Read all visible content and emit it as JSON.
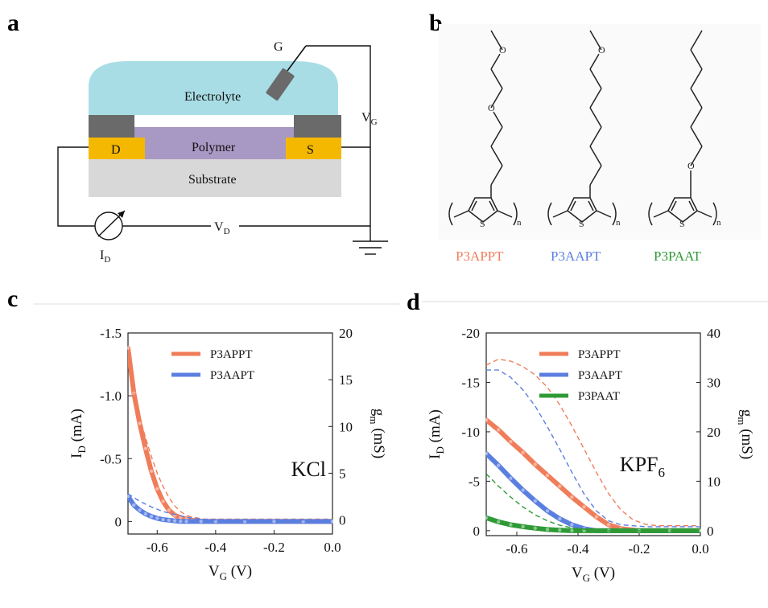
{
  "panels": {
    "a": {
      "letter": "a",
      "labels": {
        "gate": "G",
        "electrolyte": "Electrolyte",
        "polymer": "Polymer",
        "substrate": "Substrate",
        "drain": "D",
        "source": "S",
        "vg_main": "V",
        "vg_sub": "G",
        "vd_main": "V",
        "vd_sub": "D",
        "id_main": "I",
        "id_sub": "D"
      },
      "colors": {
        "electrolyte": "#a8dde5",
        "polymer": "#a898c4",
        "substrate": "#d8d8d8",
        "contact": "#f5b800",
        "passivation": "#6a6a6a"
      },
      "icons": [
        "ammeter-icon",
        "ground-icon",
        "gate-electrode-icon"
      ]
    },
    "b": {
      "letter": "b",
      "polymers": [
        {
          "name": "P3APPT",
          "color": "#f07d5a"
        },
        {
          "name": "P3AAPT",
          "color": "#5b7fe0"
        },
        {
          "name": "P3PAAT",
          "color": "#2e9a35"
        }
      ],
      "atoms": {
        "oxygen": "O",
        "sulfur": "S",
        "repeat": "n"
      }
    },
    "c": {
      "letter": "c",
      "annotation": "KCl",
      "chart_data": {
        "type": "line",
        "xlabel_main": "V",
        "xlabel_sub": "G",
        "xlabel_unit": " (V)",
        "ylabel_left_main": "I",
        "ylabel_left_sub": "D",
        "ylabel_left_unit": " (mA)",
        "ylabel_right_main": "g",
        "ylabel_right_sub": "m",
        "ylabel_right_unit": " (mS)",
        "xlim": [
          -0.7,
          0.0
        ],
        "ylim_left": [
          0.1,
          -1.5
        ],
        "ylim_right": [
          -1.5,
          20
        ],
        "x_ticks": [
          "-0.6",
          "-0.4",
          "-0.2",
          "0.0"
        ],
        "y_left_ticks": [
          "-1.5",
          "-1.0",
          "-0.5",
          "0"
        ],
        "y_right_ticks": [
          "20",
          "15",
          "10",
          "5",
          "0"
        ],
        "legend_position": "top-right",
        "series": [
          {
            "name": "P3APPT",
            "color": "#f07d5a",
            "axis": "left",
            "style": "markers",
            "x": [
              -0.7,
              -0.68,
              -0.66,
              -0.64,
              -0.62,
              -0.6,
              -0.58,
              -0.56,
              -0.54,
              -0.52,
              -0.5,
              -0.48,
              -0.46,
              -0.44,
              -0.4,
              -0.3,
              -0.2,
              -0.1,
              0.0
            ],
            "y": [
              -1.38,
              -1.02,
              -0.78,
              -0.58,
              -0.4,
              -0.26,
              -0.16,
              -0.09,
              -0.05,
              -0.03,
              -0.02,
              -0.01,
              -0.005,
              0.0,
              0.0,
              0.0,
              0.0,
              0.0,
              0.0
            ]
          },
          {
            "name": "P3APPT",
            "color": "#f07d5a",
            "axis": "right",
            "style": "dashed",
            "x": [
              -0.7,
              -0.68,
              -0.66,
              -0.64,
              -0.62,
              -0.6,
              -0.58,
              -0.56,
              -0.54,
              -0.52,
              -0.5,
              -0.48,
              -0.46,
              -0.44,
              -0.4,
              -0.3,
              -0.2,
              -0.1,
              0.0
            ],
            "y": [
              17.0,
              13.5,
              11.0,
              8.8,
              6.8,
              5.0,
              3.6,
              2.4,
              1.5,
              0.9,
              0.5,
              0.3,
              0.2,
              0.1,
              0.1,
              0.1,
              0.1,
              0.1,
              0.1
            ]
          },
          {
            "name": "P3AAPT",
            "color": "#5b7fe0",
            "axis": "left",
            "style": "markers",
            "x": [
              -0.7,
              -0.68,
              -0.66,
              -0.64,
              -0.62,
              -0.6,
              -0.58,
              -0.56,
              -0.54,
              -0.52,
              -0.5,
              -0.45,
              -0.4,
              -0.3,
              -0.2,
              -0.1,
              0.0
            ],
            "y": [
              -0.2,
              -0.13,
              -0.09,
              -0.06,
              -0.04,
              -0.025,
              -0.015,
              -0.01,
              -0.005,
              0.0,
              0.0,
              0.0,
              0.0,
              0.0,
              0.0,
              0.0,
              0.0
            ]
          },
          {
            "name": "P3AAPT",
            "color": "#5b7fe0",
            "axis": "right",
            "style": "dashed",
            "x": [
              -0.7,
              -0.66,
              -0.62,
              -0.58,
              -0.54,
              -0.5,
              -0.45,
              -0.4,
              -0.3,
              -0.2,
              -0.1,
              0.0
            ],
            "y": [
              2.8,
              2.0,
              1.4,
              0.9,
              0.6,
              0.3,
              0.1,
              0.0,
              0.0,
              0.0,
              0.0,
              0.0
            ]
          }
        ]
      }
    },
    "d": {
      "letter": "d",
      "annotation_main": "KPF",
      "annotation_sub": "6",
      "chart_data": {
        "type": "line",
        "xlabel_main": "V",
        "xlabel_sub": "G",
        "xlabel_unit": " (V)",
        "ylabel_left_main": "I",
        "ylabel_left_sub": "D",
        "ylabel_left_unit": " (mA)",
        "ylabel_right_main": "g",
        "ylabel_right_sub": "m",
        "ylabel_right_unit": " (mS)",
        "xlim": [
          -0.7,
          0.0
        ],
        "ylim_left": [
          0.5,
          -20
        ],
        "ylim_right": [
          -1,
          40
        ],
        "x_ticks": [
          "-0.6",
          "-0.4",
          "-0.2",
          "0.0"
        ],
        "y_left_ticks": [
          "-20",
          "-15",
          "-10",
          "-5",
          "0"
        ],
        "y_right_ticks": [
          "40",
          "30",
          "20",
          "10",
          "0"
        ],
        "legend_position": "top-right",
        "series": [
          {
            "name": "P3APPT",
            "color": "#f07d5a",
            "axis": "left",
            "style": "markers",
            "x": [
              -0.7,
              -0.66,
              -0.62,
              -0.58,
              -0.54,
              -0.5,
              -0.46,
              -0.42,
              -0.38,
              -0.34,
              -0.3,
              -0.26,
              -0.2,
              -0.1,
              0.0
            ],
            "y": [
              -11.2,
              -10.2,
              -9.0,
              -7.9,
              -6.7,
              -5.6,
              -4.5,
              -3.4,
              -2.4,
              -1.4,
              -0.6,
              -0.2,
              0.0,
              0.0,
              0.0
            ]
          },
          {
            "name": "P3APPT",
            "color": "#f07d5a",
            "axis": "right",
            "style": "dashed",
            "x": [
              -0.7,
              -0.66,
              -0.62,
              -0.58,
              -0.54,
              -0.5,
              -0.46,
              -0.42,
              -0.38,
              -0.34,
              -0.3,
              -0.26,
              -0.22,
              -0.18,
              -0.14,
              -0.1,
              -0.05,
              0.0
            ],
            "y": [
              33.5,
              34.7,
              34.3,
              33.2,
              31.5,
              29.0,
              25.5,
              21.2,
              16.5,
              11.8,
              7.5,
              4.2,
              2.2,
              1.3,
              1.0,
              1.0,
              1.0,
              1.0
            ]
          },
          {
            "name": "P3AAPT",
            "color": "#5b7fe0",
            "axis": "left",
            "style": "markers",
            "x": [
              -0.7,
              -0.66,
              -0.62,
              -0.58,
              -0.54,
              -0.5,
              -0.46,
              -0.42,
              -0.38,
              -0.34,
              -0.3,
              -0.2,
              -0.1,
              0.0
            ],
            "y": [
              -7.8,
              -6.6,
              -5.3,
              -4.1,
              -3.0,
              -2.0,
              -1.2,
              -0.6,
              -0.2,
              0.0,
              0.0,
              0.0,
              0.0,
              0.0
            ]
          },
          {
            "name": "P3AAPT",
            "color": "#5b7fe0",
            "axis": "right",
            "style": "dashed",
            "x": [
              -0.7,
              -0.66,
              -0.62,
              -0.58,
              -0.54,
              -0.5,
              -0.46,
              -0.42,
              -0.38,
              -0.34,
              -0.3,
              -0.26,
              -0.22,
              -0.18,
              -0.1,
              0.0
            ],
            "y": [
              32.5,
              32.5,
              31.0,
              28.5,
              25.2,
              21.0,
              16.5,
              11.8,
              7.4,
              4.0,
              2.0,
              1.2,
              1.0,
              0.8,
              0.8,
              0.8
            ]
          },
          {
            "name": "P3PAAT",
            "color": "#2e9a35",
            "axis": "left",
            "style": "markers",
            "x": [
              -0.7,
              -0.66,
              -0.62,
              -0.58,
              -0.54,
              -0.5,
              -0.46,
              -0.42,
              -0.38,
              -0.3,
              -0.2,
              -0.1,
              0.0
            ],
            "y": [
              -1.3,
              -0.9,
              -0.6,
              -0.4,
              -0.25,
              -0.12,
              -0.05,
              0.0,
              0.0,
              0.0,
              0.0,
              0.0,
              0.0
            ]
          },
          {
            "name": "P3PAAT",
            "color": "#2e9a35",
            "axis": "right",
            "style": "dashed",
            "x": [
              -0.7,
              -0.66,
              -0.62,
              -0.58,
              -0.54,
              -0.5,
              -0.46,
              -0.42,
              -0.38,
              -0.34,
              -0.3,
              -0.2,
              -0.1,
              0.0
            ],
            "y": [
              11.5,
              9.0,
              6.8,
              4.8,
              3.2,
              2.0,
              1.1,
              0.6,
              0.3,
              0.1,
              0.0,
              0.0,
              0.0,
              0.0
            ]
          }
        ]
      }
    }
  }
}
